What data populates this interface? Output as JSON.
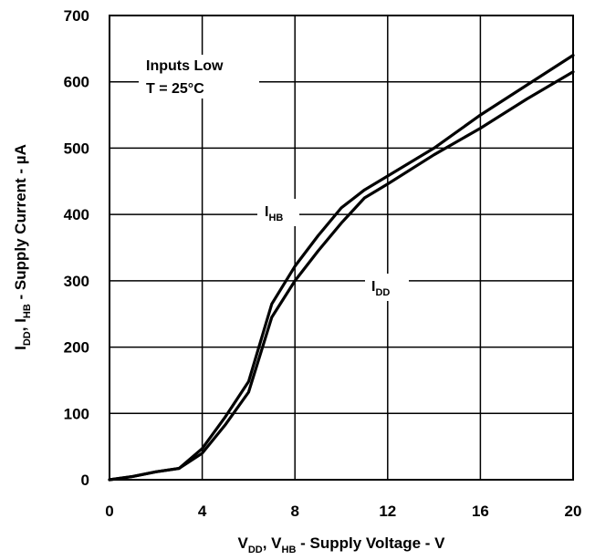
{
  "chart_data": {
    "type": "line",
    "xlabel": {
      "parts": [
        {
          "text": "V",
          "sub": false
        },
        {
          "text": "DD",
          "sub": true
        },
        {
          "text": ", V",
          "sub": false
        },
        {
          "text": "HB",
          "sub": true
        },
        {
          "text": " - Supply Voltage - V",
          "sub": false
        }
      ]
    },
    "ylabel": {
      "parts": [
        {
          "text": "I",
          "sub": false
        },
        {
          "text": "DD",
          "sub": true
        },
        {
          "text": ", I",
          "sub": false
        },
        {
          "text": "HB",
          "sub": true
        },
        {
          "text": " - Supply Current - µA",
          "sub": false
        }
      ]
    },
    "xlim": [
      0,
      20
    ],
    "ylim": [
      0,
      700
    ],
    "x_ticks": [
      0,
      4,
      8,
      12,
      16,
      20
    ],
    "y_ticks": [
      0,
      100,
      200,
      300,
      400,
      500,
      600,
      700
    ],
    "grid": true,
    "annotations": [
      {
        "id": "conditions-line1",
        "parts": [
          {
            "text": "Inputs Low",
            "sub": false
          }
        ]
      },
      {
        "id": "conditions-line2",
        "parts": [
          {
            "text": "T = 25°C",
            "sub": false
          }
        ]
      },
      {
        "id": "ihb-label",
        "parts": [
          {
            "text": "I",
            "sub": false
          },
          {
            "text": "HB",
            "sub": true
          }
        ]
      },
      {
        "id": "idd-label",
        "parts": [
          {
            "text": "I",
            "sub": false
          },
          {
            "text": "DD",
            "sub": true
          }
        ]
      }
    ],
    "series": [
      {
        "name": "IHB",
        "x": [
          0,
          1,
          2,
          3,
          4,
          5,
          6,
          7,
          8,
          9,
          10,
          11,
          12,
          14,
          16,
          18,
          20
        ],
        "y": [
          0,
          5,
          12,
          17,
          47,
          95,
          148,
          265,
          322,
          368,
          410,
          437,
          458,
          500,
          550,
          595,
          640
        ]
      },
      {
        "name": "IDD",
        "x": [
          0,
          1,
          2,
          3,
          4,
          5,
          6,
          7,
          8,
          9,
          10,
          11,
          12,
          14,
          16,
          18,
          20
        ],
        "y": [
          0,
          5,
          12,
          17,
          40,
          83,
          132,
          245,
          300,
          345,
          387,
          425,
          446,
          490,
          530,
          574,
          615
        ]
      }
    ]
  }
}
